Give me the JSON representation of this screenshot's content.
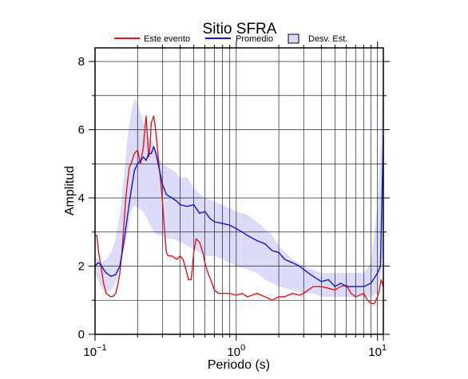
{
  "chart_data": {
    "type": "line",
    "title": "Sitio SFRA",
    "xlabel": "Periodo (s)",
    "ylabel": "Amplitud",
    "x_scale": "log",
    "xlim": [
      0.1,
      11
    ],
    "ylim": [
      0,
      8.4
    ],
    "x_ticks": [
      {
        "value": 0.1,
        "base": "10",
        "exp": "−1"
      },
      {
        "value": 1,
        "base": "10",
        "exp": "0"
      },
      {
        "value": 10,
        "base": "10",
        "exp": "1"
      }
    ],
    "y_ticks": [
      0,
      2,
      4,
      6,
      8
    ],
    "grid": true,
    "legend_position": "top",
    "legend": [
      {
        "label": "Este evento",
        "kind": "line",
        "color": "#e8141c"
      },
      {
        "label": "Promedio",
        "kind": "line",
        "color": "#1414d2"
      },
      {
        "label": "Desv. Est.",
        "kind": "band",
        "color": "#dcdcf8"
      }
    ],
    "band": {
      "name": "Desv. Est.",
      "color": "#dcdcf8",
      "x": [
        0.1,
        0.105,
        0.11,
        0.12,
        0.13,
        0.14,
        0.15,
        0.16,
        0.17,
        0.18,
        0.19,
        0.2,
        0.22,
        0.24,
        0.26,
        0.28,
        0.3,
        0.33,
        0.36,
        0.4,
        0.45,
        0.5,
        0.55,
        0.6,
        0.7,
        0.8,
        0.9,
        1.0,
        1.2,
        1.4,
        1.6,
        1.8,
        2.0,
        2.5,
        3.0,
        3.5,
        4.0,
        5.0,
        6.0,
        7.0,
        8.0,
        9.0,
        10.0,
        10.5,
        11.0
      ],
      "lower": [
        1.8,
        1.6,
        1.4,
        1.2,
        1.3,
        1.5,
        1.9,
        2.5,
        3.0,
        3.6,
        3.8,
        3.7,
        3.6,
        3.3,
        3.0,
        2.9,
        2.9,
        2.8,
        2.8,
        2.7,
        2.6,
        2.5,
        2.4,
        2.3,
        2.3,
        2.2,
        2.1,
        2.0,
        1.9,
        1.8,
        1.6,
        1.5,
        1.4,
        1.3,
        1.2,
        1.2,
        1.1,
        1.1,
        1.1,
        1.1,
        1.1,
        1.1,
        1.2,
        1.7,
        2.5
      ],
      "upper": [
        2.3,
        2.2,
        2.1,
        2.2,
        2.4,
        2.8,
        3.5,
        4.6,
        5.8,
        6.5,
        6.9,
        6.8,
        6.2,
        5.8,
        5.6,
        5.2,
        5.0,
        4.9,
        4.8,
        4.6,
        4.6,
        4.3,
        4.1,
        4.0,
        3.9,
        3.8,
        3.7,
        3.6,
        3.5,
        3.3,
        3.1,
        2.9,
        2.6,
        2.2,
        2.0,
        1.9,
        1.8,
        1.8,
        1.8,
        1.8,
        1.8,
        2.1,
        3.8,
        5.5,
        8.3
      ]
    },
    "series": [
      {
        "name": "Este evento",
        "color": "#e8141c",
        "x": [
          0.1,
          0.103,
          0.106,
          0.11,
          0.115,
          0.12,
          0.125,
          0.13,
          0.135,
          0.14,
          0.145,
          0.15,
          0.155,
          0.16,
          0.165,
          0.17,
          0.175,
          0.18,
          0.19,
          0.2,
          0.21,
          0.22,
          0.225,
          0.23,
          0.24,
          0.245,
          0.25,
          0.255,
          0.26,
          0.265,
          0.27,
          0.28,
          0.29,
          0.3,
          0.31,
          0.32,
          0.33,
          0.35,
          0.38,
          0.4,
          0.42,
          0.44,
          0.46,
          0.48,
          0.5,
          0.52,
          0.55,
          0.58,
          0.6,
          0.63,
          0.66,
          0.7,
          0.75,
          0.8,
          0.9,
          1.0,
          1.1,
          1.2,
          1.4,
          1.6,
          1.8,
          2.0,
          2.2,
          2.5,
          2.8,
          3.0,
          3.5,
          4.0,
          4.5,
          5.0,
          5.5,
          6.0,
          6.5,
          7.0,
          7.5,
          8.0,
          8.5,
          9.0,
          9.5,
          10.0,
          10.3,
          10.6,
          11.0
        ],
        "y": [
          2.9,
          2.9,
          2.4,
          2.0,
          1.5,
          1.2,
          1.15,
          1.1,
          1.12,
          1.2,
          1.45,
          1.8,
          2.4,
          3.2,
          4.0,
          4.5,
          4.9,
          5.0,
          5.3,
          5.4,
          5.0,
          5.5,
          6.0,
          6.4,
          5.2,
          5.5,
          6.2,
          6.3,
          6.4,
          6.2,
          5.9,
          5.2,
          4.6,
          3.9,
          3.1,
          2.4,
          2.3,
          2.3,
          2.2,
          2.3,
          2.2,
          1.9,
          1.6,
          1.6,
          2.4,
          2.8,
          2.7,
          2.4,
          2.1,
          1.8,
          1.6,
          1.3,
          1.2,
          1.2,
          1.2,
          1.15,
          1.2,
          1.1,
          1.2,
          1.1,
          1.0,
          1.1,
          1.1,
          1.2,
          1.15,
          1.2,
          1.4,
          1.4,
          1.35,
          1.3,
          1.4,
          1.45,
          1.2,
          1.1,
          1.15,
          1.2,
          1.0,
          0.9,
          0.9,
          1.1,
          1.3,
          1.6,
          1.4
        ]
      },
      {
        "name": "Promedio",
        "color": "#1414d2",
        "x": [
          0.1,
          0.105,
          0.11,
          0.115,
          0.12,
          0.13,
          0.14,
          0.15,
          0.16,
          0.17,
          0.18,
          0.19,
          0.2,
          0.21,
          0.22,
          0.23,
          0.24,
          0.25,
          0.26,
          0.27,
          0.28,
          0.3,
          0.32,
          0.35,
          0.38,
          0.4,
          0.45,
          0.5,
          0.55,
          0.6,
          0.65,
          0.7,
          0.8,
          0.9,
          1.0,
          1.1,
          1.2,
          1.4,
          1.6,
          1.8,
          2.0,
          2.2,
          2.5,
          2.8,
          3.0,
          3.5,
          4.0,
          4.5,
          5.0,
          5.5,
          6.0,
          7.0,
          8.0,
          9.0,
          10.0,
          10.5,
          11.0
        ],
        "y": [
          2.0,
          2.1,
          2.05,
          1.9,
          1.8,
          1.7,
          1.75,
          2.0,
          2.7,
          3.5,
          4.2,
          4.8,
          5.0,
          5.1,
          5.2,
          5.1,
          5.3,
          5.3,
          5.5,
          5.3,
          5.0,
          4.4,
          4.1,
          4.0,
          3.9,
          3.8,
          3.75,
          3.8,
          3.55,
          3.6,
          3.4,
          3.3,
          3.25,
          3.2,
          3.1,
          3.0,
          2.9,
          2.75,
          2.65,
          2.45,
          2.4,
          2.2,
          2.1,
          2.0,
          1.9,
          1.7,
          1.55,
          1.6,
          1.4,
          1.5,
          1.4,
          1.4,
          1.4,
          1.5,
          1.8,
          2.0,
          5.8
        ]
      }
    ]
  }
}
